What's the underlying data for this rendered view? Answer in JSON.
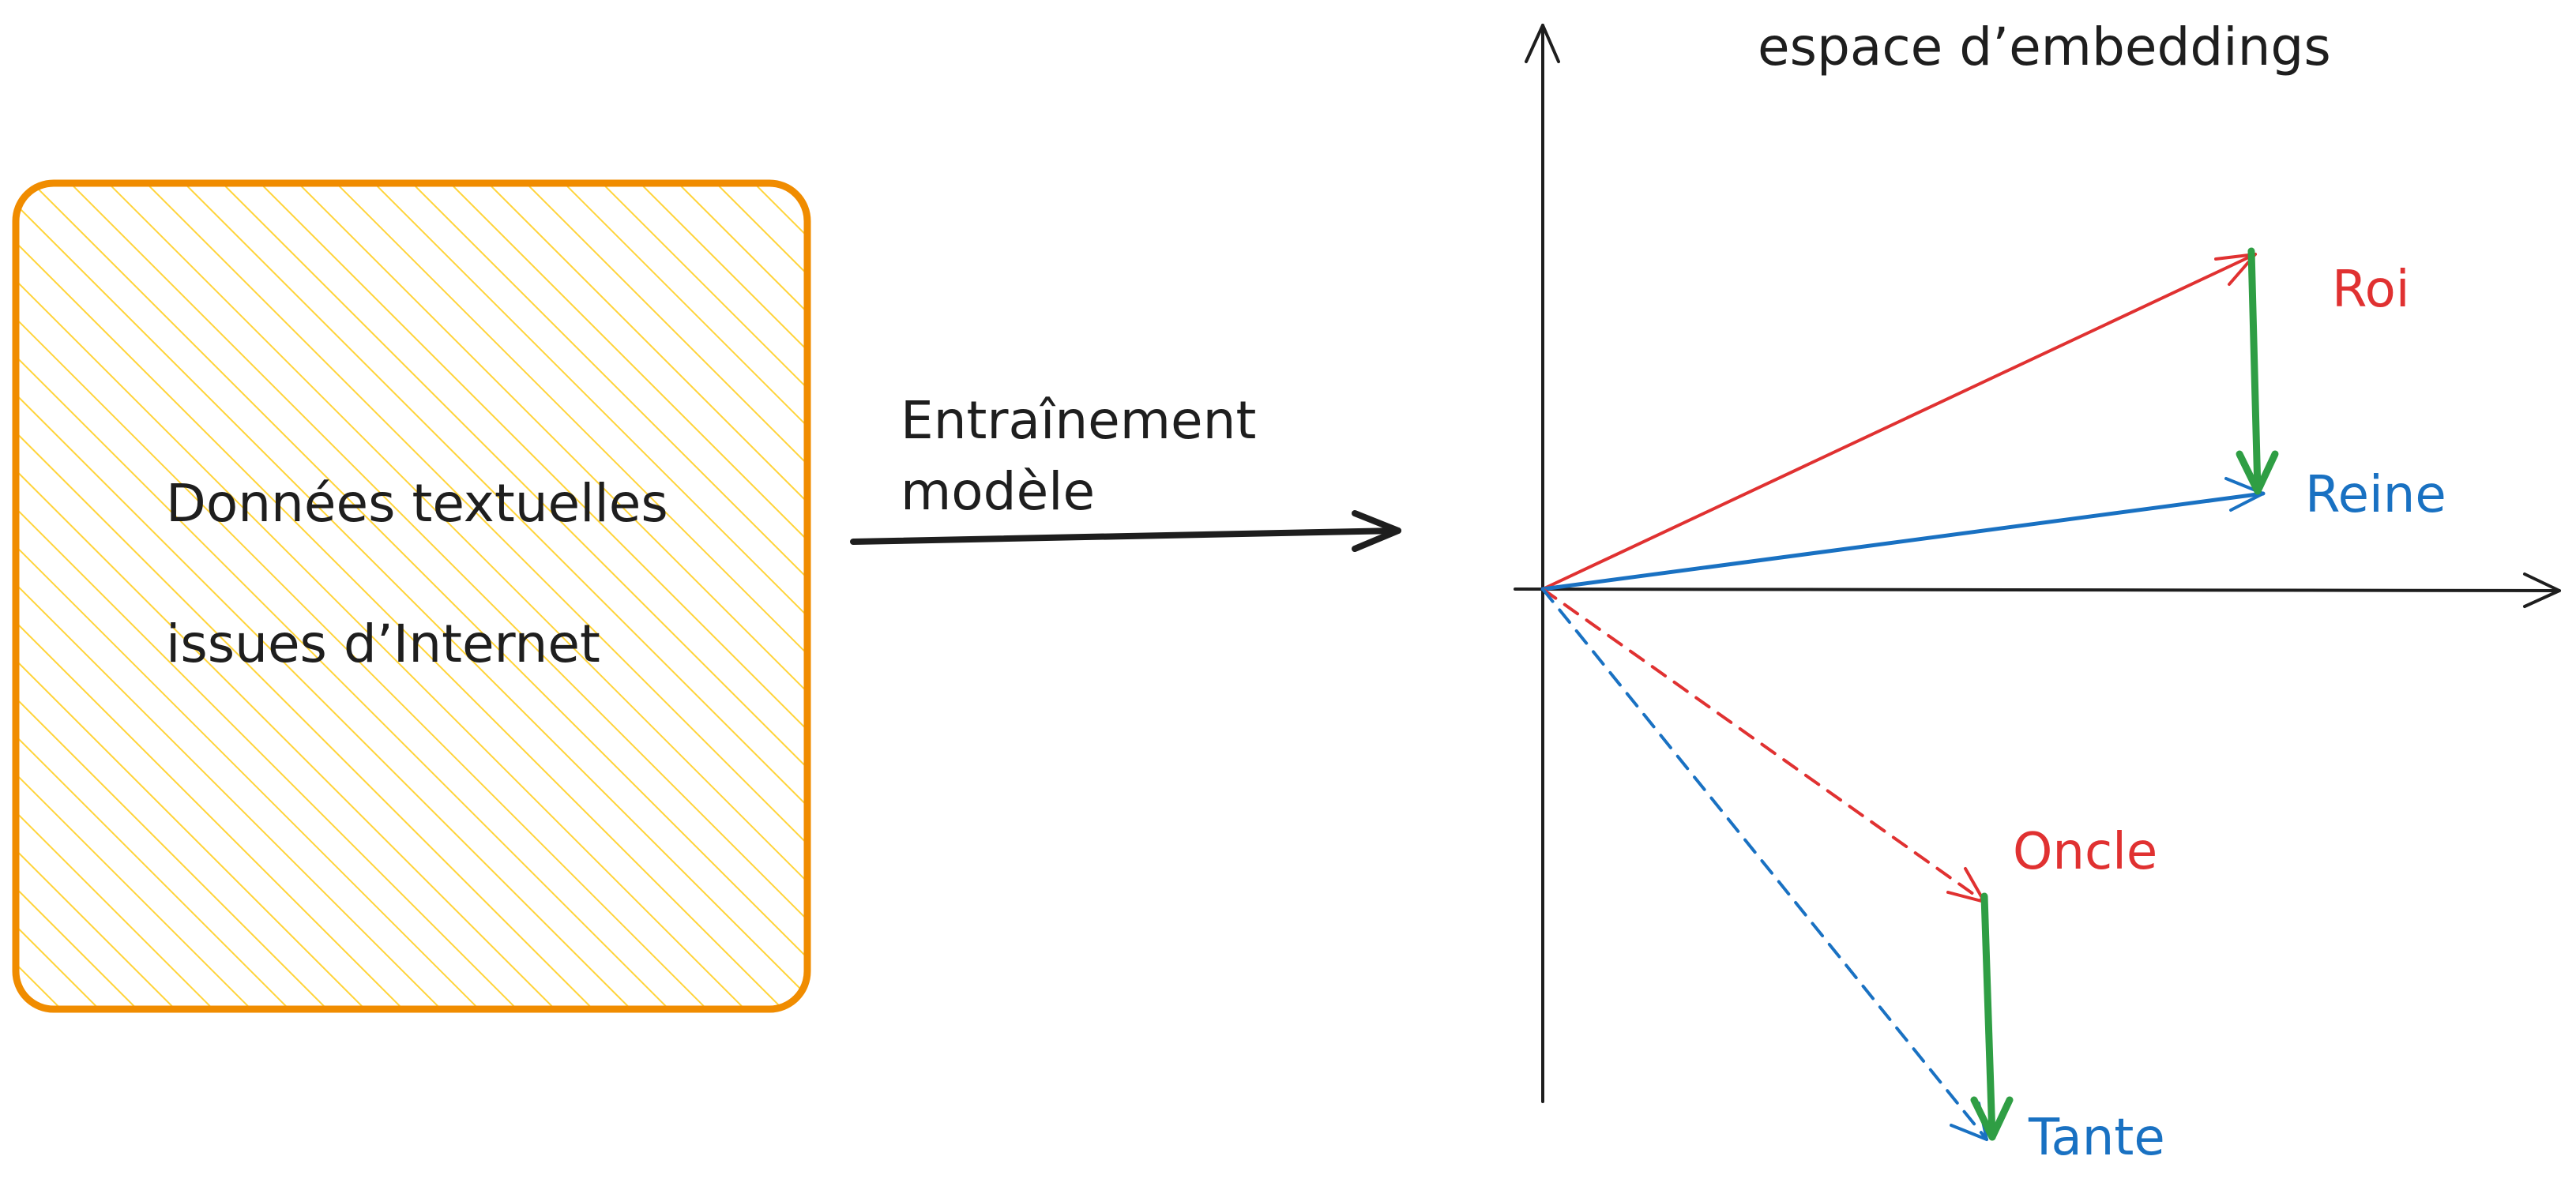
{
  "source_box": {
    "line1": "Données textuelles",
    "line2": "issues d’Internet",
    "fill_color": "#ffd43b",
    "stroke_color": "#f08c00"
  },
  "training_arrow": {
    "line1": "Entraînement",
    "line2": "modèle"
  },
  "embedding_space": {
    "title": "espace d’embeddings",
    "words": {
      "roi": "Roi",
      "reine": "Reine",
      "oncle": "Oncle",
      "tante": "Tante"
    },
    "colors": {
      "masculine": "#e03131",
      "feminine": "#1971c2",
      "difference": "#2f9e44",
      "axes": "#1e1e1e"
    }
  }
}
